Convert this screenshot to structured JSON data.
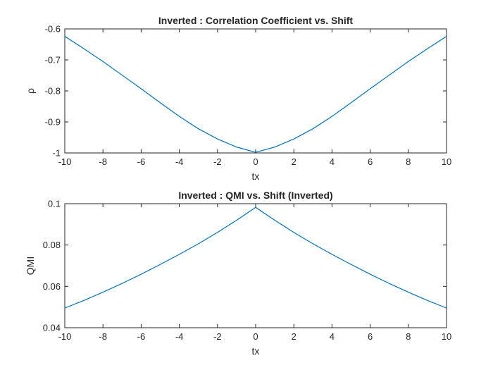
{
  "colors": {
    "series": "#0072bd",
    "axes": "#262626",
    "background": "#ffffff"
  },
  "chart_data": [
    {
      "type": "line",
      "title": "Inverted : Correlation Coefficient vs. Shift",
      "xlabel": "tx",
      "ylabel": "ρ",
      "xlim": [
        -10,
        10
      ],
      "ylim": [
        -1,
        -0.6
      ],
      "xticks": [
        -10,
        -8,
        -6,
        -4,
        -2,
        0,
        2,
        4,
        6,
        8,
        10
      ],
      "xtick_labels": [
        "-10",
        "-8",
        "-6",
        "-4",
        "-2",
        "0",
        "2",
        "4",
        "6",
        "8",
        "10"
      ],
      "yticks": [
        -1,
        -0.9,
        -0.8,
        -0.7,
        -0.6
      ],
      "ytick_labels": [
        "-1",
        "-0.9",
        "-0.8",
        "-0.7",
        "-0.6"
      ],
      "grid": false,
      "series": [
        {
          "x": [
            -10,
            -9,
            -8,
            -7,
            -6,
            -5,
            -4,
            -3,
            -2,
            -1,
            0,
            1,
            2,
            3,
            4,
            5,
            6,
            7,
            8,
            9,
            10
          ],
          "values": [
            -0.624,
            -0.664,
            -0.705,
            -0.749,
            -0.793,
            -0.838,
            -0.882,
            -0.922,
            -0.955,
            -0.981,
            -0.998,
            -0.981,
            -0.955,
            -0.922,
            -0.882,
            -0.838,
            -0.793,
            -0.749,
            -0.705,
            -0.664,
            -0.624
          ]
        }
      ]
    },
    {
      "type": "line",
      "title": "Inverted : QMI vs. Shift (Inverted)",
      "xlabel": "tx",
      "ylabel": "QMI",
      "xlim": [
        -10,
        10
      ],
      "ylim": [
        0.04,
        0.1
      ],
      "xticks": [
        -10,
        -8,
        -6,
        -4,
        -2,
        0,
        2,
        4,
        6,
        8,
        10
      ],
      "xtick_labels": [
        "-10",
        "-8",
        "-6",
        "-4",
        "-2",
        "0",
        "2",
        "4",
        "6",
        "8",
        "10"
      ],
      "yticks": [
        0.04,
        0.06,
        0.08,
        0.1
      ],
      "ytick_labels": [
        "0.04",
        "0.06",
        "0.08",
        "0.1"
      ],
      "grid": false,
      "series": [
        {
          "x": [
            -10,
            -9,
            -8,
            -7,
            -6,
            -5,
            -4,
            -3,
            -2,
            -1,
            0,
            1,
            2,
            3,
            4,
            5,
            6,
            7,
            8,
            9,
            10
          ],
          "values": [
            0.0495,
            0.0532,
            0.0572,
            0.0614,
            0.0659,
            0.0706,
            0.0755,
            0.0806,
            0.0861,
            0.092,
            0.0982,
            0.092,
            0.0861,
            0.0806,
            0.0755,
            0.0706,
            0.0659,
            0.0614,
            0.0572,
            0.0532,
            0.0495
          ]
        }
      ]
    }
  ]
}
